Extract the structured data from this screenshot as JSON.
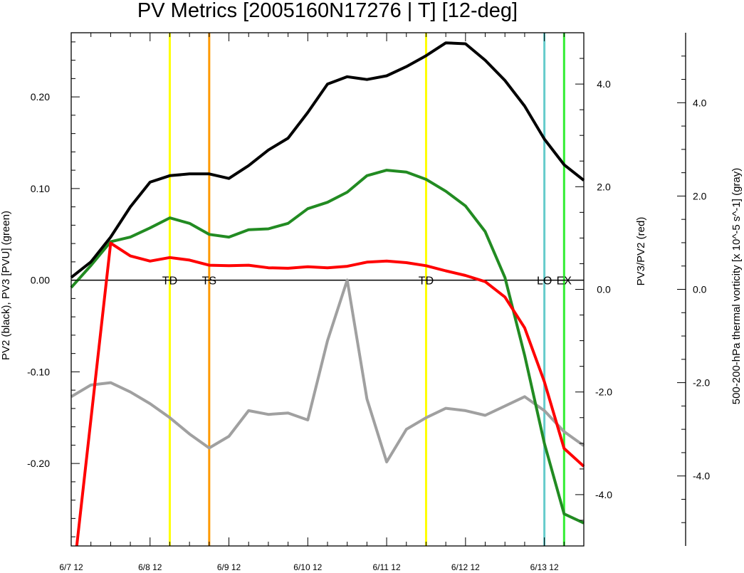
{
  "chart_data": {
    "type": "line",
    "title": "PV Metrics [2005160N17276 | T] [12-deg]",
    "x_tick_labels": [
      "6/7 12",
      "6/8 12",
      "6/9 12",
      "6/10 12",
      "6/11 12",
      "6/12 12",
      "6/13 12"
    ],
    "x_unit": "days since 6/7 12",
    "xlim": [
      0,
      6.5
    ],
    "axes": {
      "left": {
        "label": "PV2 (black), PV3 [PVU] (green)",
        "ylim": [
          -0.29,
          0.27
        ],
        "tick_labels": [
          "-0.20",
          "-0.10",
          "0.00",
          "0.10",
          "0.20"
        ],
        "tick_values": [
          -0.2,
          -0.1,
          0.0,
          0.1,
          0.2
        ]
      },
      "right": {
        "label": "PV3/PV2 (red)",
        "ylim": [
          -5.0,
          5.0
        ],
        "tick_labels": [
          "-4.0",
          "-2.0",
          "0.0",
          "2.0",
          "4.0"
        ],
        "tick_values": [
          -4,
          -2,
          0,
          2,
          4
        ]
      },
      "far_right": {
        "label": "500-200-hPa thermal vorticity [x 10^-5 s^-1] (gray)",
        "ylim": [
          -5.5,
          5.5
        ],
        "tick_labels": [
          "-4.0",
          "-2.0",
          "0.0",
          "2.0",
          "4.0"
        ],
        "tick_values": [
          -4,
          -2,
          0,
          2,
          4
        ]
      }
    },
    "zero_line_value": 0,
    "series": [
      {
        "name": "PV2",
        "axis": "left",
        "color": "#000000",
        "x": [
          0,
          0.25,
          0.5,
          0.75,
          1,
          1.25,
          1.5,
          1.75,
          2,
          2.25,
          2.5,
          2.75,
          3,
          3.25,
          3.5,
          3.75,
          4,
          4.25,
          4.5,
          4.75,
          5,
          5.25,
          5.5,
          5.75,
          6,
          6.25,
          6.5
        ],
        "values": [
          0.003,
          0.02,
          0.047,
          0.08,
          0.107,
          0.114,
          0.116,
          0.116,
          0.111,
          0.125,
          0.142,
          0.155,
          0.183,
          0.214,
          0.222,
          0.219,
          0.223,
          0.233,
          0.245,
          0.259,
          0.258,
          0.24,
          0.218,
          0.19,
          0.154,
          0.126,
          0.109
        ]
      },
      {
        "name": "PV3",
        "axis": "left",
        "color": "#228b22",
        "x": [
          0,
          0.25,
          0.5,
          0.75,
          1,
          1.25,
          1.5,
          1.75,
          2,
          2.25,
          2.5,
          2.75,
          3,
          3.25,
          3.5,
          3.75,
          4,
          4.25,
          4.5,
          4.75,
          5,
          5.25,
          5.5,
          5.75,
          6,
          6.25,
          6.5
        ],
        "values": [
          -0.008,
          0.016,
          0.042,
          0.047,
          0.057,
          0.068,
          0.062,
          0.05,
          0.047,
          0.055,
          0.056,
          0.062,
          0.078,
          0.085,
          0.096,
          0.114,
          0.12,
          0.118,
          0.11,
          0.097,
          0.081,
          0.053,
          0.003,
          -0.082,
          -0.178,
          -0.255,
          -0.265
        ]
      },
      {
        "name": "PV3/PV2",
        "axis": "right",
        "color": "#ff0000",
        "x": [
          0.07,
          0.5,
          0.75,
          1,
          1.25,
          1.5,
          1.75,
          2,
          2.25,
          2.5,
          2.75,
          3,
          3.25,
          3.5,
          3.75,
          4,
          4.25,
          4.5,
          4.75,
          5,
          5.25,
          5.5,
          5.75,
          6,
          6.25,
          6.5
        ],
        "values": [
          -5.0,
          0.9,
          0.65,
          0.55,
          0.62,
          0.57,
          0.47,
          0.46,
          0.47,
          0.42,
          0.41,
          0.44,
          0.42,
          0.45,
          0.53,
          0.55,
          0.52,
          0.46,
          0.36,
          0.27,
          0.15,
          -0.15,
          -0.75,
          -1.8,
          -3.1,
          -3.45
        ]
      },
      {
        "name": "500-200-hPa thermal vorticity",
        "axis": "far_right",
        "color": "#a0a0a0",
        "x": [
          0,
          0.25,
          0.5,
          0.75,
          1,
          1.25,
          1.5,
          1.75,
          2,
          2.25,
          2.5,
          2.75,
          3,
          3.25,
          3.5,
          3.75,
          4,
          4.25,
          4.5,
          4.75,
          5,
          5.25,
          5.5,
          5.75,
          6,
          6.25,
          6.5
        ],
        "values": [
          -2.3,
          -2.05,
          -2.0,
          -2.2,
          -2.45,
          -2.75,
          -3.1,
          -3.4,
          -3.15,
          -2.6,
          -2.68,
          -2.65,
          -2.8,
          -1.1,
          0.2,
          -2.35,
          -3.7,
          -3.0,
          -2.75,
          -2.55,
          -2.6,
          -2.7,
          -2.5,
          -2.3,
          -2.6,
          -3.05,
          -3.35
        ]
      }
    ],
    "events": [
      {
        "label": "TD",
        "x": 1.25,
        "color": "#ffff00"
      },
      {
        "label": "TS",
        "x": 1.75,
        "color": "#ff9900"
      },
      {
        "label": "TD",
        "x": 4.5,
        "color": "#ffff00"
      },
      {
        "label": "LO",
        "x": 6.0,
        "color": "#66cccc"
      },
      {
        "label": "EX",
        "x": 6.25,
        "color": "#33ee33"
      }
    ],
    "grid": false
  }
}
